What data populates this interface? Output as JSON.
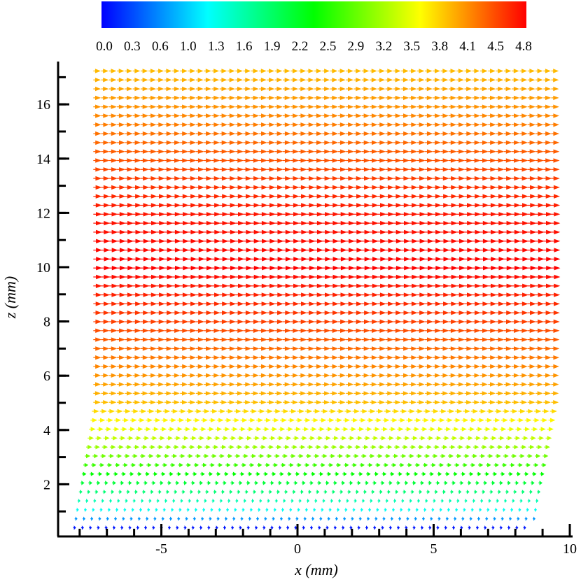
{
  "chart_data": {
    "type": "quiver",
    "xlabel": "x (mm)",
    "ylabel": "z (mm)",
    "xlim": [
      -8.8,
      10.5
    ],
    "ylim": [
      0,
      17.5
    ],
    "x_ticks": [
      -5,
      0,
      5,
      10
    ],
    "y_ticks": [
      2,
      4,
      6,
      8,
      10,
      12,
      14,
      16
    ],
    "colorbar": {
      "min": 0.0,
      "max": 4.8,
      "colormap": "rainbow",
      "tick_labels": [
        "0.0",
        "0.3",
        "0.6",
        "1.0",
        "1.3",
        "1.6",
        "1.9",
        "2.2",
        "2.5",
        "2.9",
        "3.2",
        "3.5",
        "3.8",
        "4.1",
        "4.5",
        "4.8"
      ]
    },
    "vector_field": {
      "direction": "+x",
      "x_start": -8.3,
      "x_spacing": 0.29,
      "z_start": 0.4,
      "z_spacing": 0.33,
      "magnitude_profile_z": [
        0.4,
        1.0,
        2.0,
        3.0,
        4.0,
        5.0,
        6.0,
        8.0,
        10.0,
        12.0,
        14.0,
        16.0,
        17.4
      ],
      "magnitude_profile_v": [
        0.1,
        1.2,
        2.1,
        2.9,
        3.5,
        3.9,
        4.1,
        4.5,
        4.8,
        4.7,
        4.4,
        4.1,
        3.9
      ],
      "right_edge_x": [
        8.5,
        9.5
      ],
      "left_edge_x": [
        -8.3,
        -7.5
      ]
    }
  }
}
